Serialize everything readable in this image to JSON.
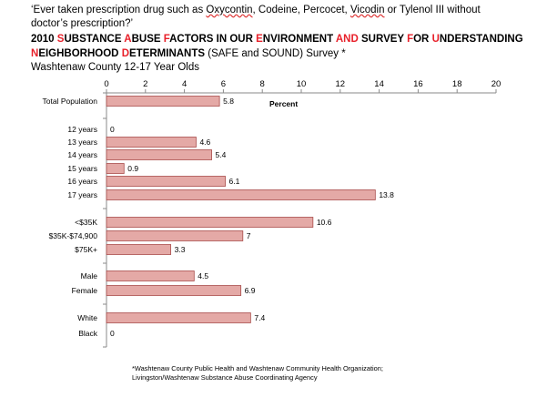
{
  "header": {
    "question_part1": "‘Ever taken prescription drug such as ",
    "question_word_oxycontin": "Oxycontin",
    "question_part2": ", Codeine, Percocet, ",
    "question_word_vicodin": "Vicodin",
    "question_part3": " or Tylenol III without",
    "question_line2": "doctor’s prescription?’",
    "title_line1_segments": [
      {
        "text": "2010  ",
        "red": false
      },
      {
        "text": "S",
        "red": true
      },
      {
        "text": "UBSTANCE ",
        "red": false
      },
      {
        "text": "A",
        "red": true
      },
      {
        "text": "BUSE ",
        "red": false
      },
      {
        "text": "F",
        "red": true
      },
      {
        "text": "ACTORS IN OUR ",
        "red": false
      },
      {
        "text": "E",
        "red": true
      },
      {
        "text": "NVIRONMENT ",
        "red": false
      },
      {
        "text": "AND",
        "red": true
      },
      {
        "text": " SURVEY ",
        "red": false
      },
      {
        "text": "F",
        "red": true
      },
      {
        "text": "OR ",
        "red": false
      },
      {
        "text": "U",
        "red": true
      },
      {
        "text": "NDERSTANDING",
        "red": false
      }
    ],
    "title_line2_segments": [
      {
        "text": "N",
        "red": true
      },
      {
        "text": "EIGHBORHOOD ",
        "red": false
      },
      {
        "text": "D",
        "red": true
      },
      {
        "text": "ETERMINANTS",
        "red": false
      },
      {
        "text": "   (SAFE and SOUND) Survey *",
        "red": false,
        "normal": true
      }
    ],
    "subtitle": "Washtenaw County 12-17 Year Olds"
  },
  "chart_data": {
    "type": "bar",
    "orientation": "horizontal",
    "xlim": [
      0,
      20
    ],
    "xticks": [
      0,
      2,
      4,
      6,
      8,
      10,
      12,
      14,
      16,
      18,
      20
    ],
    "axis_position": "top",
    "unit_label": "Percent",
    "bar_color": "#e4a9a6",
    "bar_edge_color": "#a94d4b",
    "categories": [
      {
        "label": "Total Population",
        "value": 5.8,
        "value_label": "5.8"
      },
      {
        "label": "12 years",
        "value": 0,
        "value_label": "0"
      },
      {
        "label": "13 years",
        "value": 4.6,
        "value_label": "4.6"
      },
      {
        "label": "14 years",
        "value": 5.4,
        "value_label": "5.4"
      },
      {
        "label": "15 years",
        "value": 0.9,
        "value_label": "0.9"
      },
      {
        "label": "16 years",
        "value": 6.1,
        "value_label": "6.1"
      },
      {
        "label": "17 years",
        "value": 13.8,
        "value_label": "13.8"
      },
      {
        "label": "<$35K",
        "value": 10.6,
        "value_label": "10.6"
      },
      {
        "label": "$35K-$74,900",
        "value": 7,
        "value_label": "7"
      },
      {
        "label": "$75K+",
        "value": 3.3,
        "value_label": "3.3"
      },
      {
        "label": "Male",
        "value": 4.5,
        "value_label": "4.5"
      },
      {
        "label": "Female",
        "value": 6.9,
        "value_label": "6.9"
      },
      {
        "label": "White",
        "value": 7.4,
        "value_label": "7.4"
      },
      {
        "label": "Black",
        "value": 0,
        "value_label": "0"
      }
    ]
  },
  "footnote": {
    "line1": "*Washtenaw County Public Health and Washtenaw Community Health Organization;",
    "line2": "Livingston/Washtenaw Substance Abuse Coordinating Agency"
  }
}
